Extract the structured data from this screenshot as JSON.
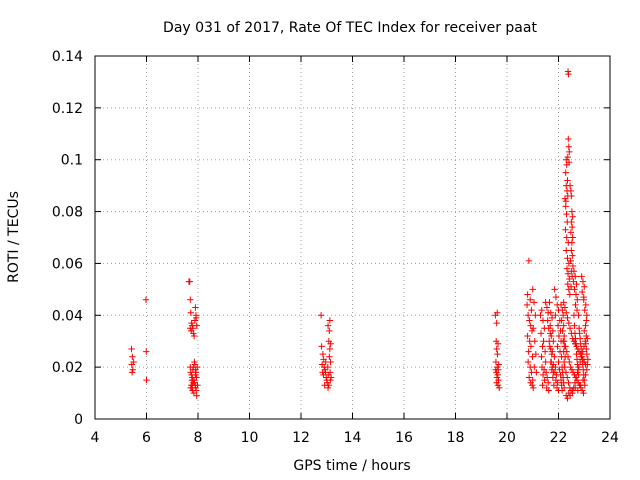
{
  "chart_data": {
    "type": "scatter",
    "title": "Day 031 of 2017, Rate Of TEC Index for receiver paat",
    "xlabel": "GPS time / hours",
    "ylabel": "ROTI / TECUs",
    "xlim": [
      4,
      24
    ],
    "ylim": [
      0,
      0.14
    ],
    "xticks": [
      4,
      6,
      8,
      10,
      12,
      14,
      16,
      18,
      20,
      22,
      24
    ],
    "yticks": [
      0,
      0.02,
      0.04,
      0.06,
      0.08,
      0.1,
      0.12,
      0.14
    ],
    "xtick_labels": [
      "4",
      "6",
      "8",
      "10",
      "12",
      "14",
      "16",
      "18",
      "20",
      "22",
      "24"
    ],
    "ytick_labels": [
      "0",
      "0.02",
      "0.04",
      "0.06",
      "0.08",
      "0.1",
      "0.12",
      "0.14"
    ],
    "grid": true,
    "marker": "plus",
    "color": "#ff0000",
    "points": [
      [
        5.42,
        0.027
      ],
      [
        5.45,
        0.024
      ],
      [
        5.43,
        0.021
      ],
      [
        5.47,
        0.019
      ],
      [
        5.44,
        0.018
      ],
      [
        5.5,
        0.022
      ],
      [
        5.98,
        0.046
      ],
      [
        5.99,
        0.026
      ],
      [
        6.0,
        0.015
      ],
      [
        7.65,
        0.053
      ],
      [
        7.68,
        0.053
      ],
      [
        7.7,
        0.046
      ],
      [
        7.72,
        0.041
      ],
      [
        7.75,
        0.037
      ],
      [
        7.78,
        0.036
      ],
      [
        7.8,
        0.035
      ],
      [
        7.74,
        0.034
      ],
      [
        7.82,
        0.033
      ],
      [
        7.85,
        0.032
      ],
      [
        7.7,
        0.035
      ],
      [
        7.9,
        0.043
      ],
      [
        7.92,
        0.04
      ],
      [
        7.88,
        0.038
      ],
      [
        7.95,
        0.036
      ],
      [
        7.93,
        0.039
      ],
      [
        7.7,
        0.02
      ],
      [
        7.72,
        0.018
      ],
      [
        7.75,
        0.017
      ],
      [
        7.78,
        0.016
      ],
      [
        7.8,
        0.015
      ],
      [
        7.82,
        0.014
      ],
      [
        7.74,
        0.013
      ],
      [
        7.76,
        0.012
      ],
      [
        7.79,
        0.011
      ],
      [
        7.84,
        0.01
      ],
      [
        7.86,
        0.022
      ],
      [
        7.88,
        0.021
      ],
      [
        7.9,
        0.019
      ],
      [
        7.92,
        0.018
      ],
      [
        7.94,
        0.016
      ],
      [
        7.85,
        0.015
      ],
      [
        7.87,
        0.014
      ],
      [
        7.89,
        0.013
      ],
      [
        7.91,
        0.012
      ],
      [
        7.93,
        0.011
      ],
      [
        7.95,
        0.009
      ],
      [
        7.82,
        0.02
      ],
      [
        7.8,
        0.019
      ],
      [
        7.78,
        0.013
      ],
      [
        7.76,
        0.015
      ],
      [
        7.72,
        0.012
      ],
      [
        7.9,
        0.017
      ],
      [
        7.97,
        0.02
      ],
      [
        7.98,
        0.013
      ],
      [
        12.78,
        0.04
      ],
      [
        12.8,
        0.028
      ],
      [
        12.85,
        0.025
      ],
      [
        12.88,
        0.023
      ],
      [
        12.82,
        0.021
      ],
      [
        12.9,
        0.02
      ],
      [
        12.93,
        0.019
      ],
      [
        12.95,
        0.018
      ],
      [
        12.87,
        0.017
      ],
      [
        12.98,
        0.016
      ],
      [
        13.0,
        0.015
      ],
      [
        13.02,
        0.014
      ],
      [
        12.92,
        0.013
      ],
      [
        13.05,
        0.012
      ],
      [
        13.08,
        0.013
      ],
      [
        12.84,
        0.018
      ],
      [
        12.96,
        0.022
      ],
      [
        13.04,
        0.02
      ],
      [
        13.05,
        0.036
      ],
      [
        13.1,
        0.034
      ],
      [
        13.12,
        0.038
      ],
      [
        13.08,
        0.03
      ],
      [
        13.12,
        0.027
      ],
      [
        13.15,
        0.029
      ],
      [
        13.1,
        0.024
      ],
      [
        13.15,
        0.022
      ],
      [
        13.13,
        0.018
      ],
      [
        13.17,
        0.016
      ],
      [
        13.06,
        0.017
      ],
      [
        13.14,
        0.015
      ],
      [
        19.55,
        0.04
      ],
      [
        19.6,
        0.037
      ],
      [
        19.62,
        0.041
      ],
      [
        19.58,
        0.03
      ],
      [
        19.65,
        0.029
      ],
      [
        19.6,
        0.027
      ],
      [
        19.63,
        0.025
      ],
      [
        19.57,
        0.022
      ],
      [
        19.62,
        0.02
      ],
      [
        19.66,
        0.019
      ],
      [
        19.59,
        0.018
      ],
      [
        19.64,
        0.017
      ],
      [
        19.61,
        0.016
      ],
      [
        19.67,
        0.015
      ],
      [
        19.6,
        0.014
      ],
      [
        19.65,
        0.013
      ],
      [
        19.7,
        0.012
      ],
      [
        19.56,
        0.019
      ],
      [
        19.68,
        0.021
      ],
      [
        20.85,
        0.061
      ],
      [
        20.8,
        0.048
      ],
      [
        20.9,
        0.046
      ],
      [
        20.78,
        0.044
      ],
      [
        20.95,
        0.042
      ],
      [
        20.82,
        0.04
      ],
      [
        20.87,
        0.038
      ],
      [
        20.92,
        0.036
      ],
      [
        20.97,
        0.034
      ],
      [
        20.8,
        0.032
      ],
      [
        20.88,
        0.03
      ],
      [
        20.93,
        0.028
      ],
      [
        20.84,
        0.026
      ],
      [
        20.99,
        0.024
      ],
      [
        20.82,
        0.022
      ],
      [
        20.9,
        0.02
      ],
      [
        20.95,
        0.018
      ],
      [
        20.86,
        0.016
      ],
      [
        21.0,
        0.015
      ],
      [
        20.92,
        0.014
      ],
      [
        20.98,
        0.013
      ],
      [
        21.02,
        0.012
      ],
      [
        21.0,
        0.05
      ],
      [
        21.05,
        0.045
      ],
      [
        21.1,
        0.04
      ],
      [
        21.02,
        0.035
      ],
      [
        21.08,
        0.03
      ],
      [
        21.12,
        0.025
      ],
      [
        21.06,
        0.02
      ],
      [
        21.14,
        0.018
      ],
      [
        21.3,
        0.04
      ],
      [
        21.35,
        0.042
      ],
      [
        21.4,
        0.038
      ],
      [
        21.45,
        0.035
      ],
      [
        21.32,
        0.033
      ],
      [
        21.42,
        0.03
      ],
      [
        21.38,
        0.028
      ],
      [
        21.48,
        0.026
      ],
      [
        21.34,
        0.024
      ],
      [
        21.5,
        0.022
      ],
      [
        21.36,
        0.02
      ],
      [
        21.44,
        0.019
      ],
      [
        21.52,
        0.018
      ],
      [
        21.4,
        0.017
      ],
      [
        21.56,
        0.016
      ],
      [
        21.46,
        0.015
      ],
      [
        21.6,
        0.014
      ],
      [
        21.38,
        0.013
      ],
      [
        21.54,
        0.012
      ],
      [
        21.62,
        0.011
      ],
      [
        21.65,
        0.045
      ],
      [
        21.7,
        0.041
      ],
      [
        21.75,
        0.039
      ],
      [
        21.68,
        0.036
      ],
      [
        21.78,
        0.034
      ],
      [
        21.72,
        0.032
      ],
      [
        21.8,
        0.03
      ],
      [
        21.66,
        0.028
      ],
      [
        21.76,
        0.026
      ],
      [
        21.84,
        0.024
      ],
      [
        21.7,
        0.022
      ],
      [
        21.8,
        0.021
      ],
      [
        21.88,
        0.02
      ],
      [
        21.74,
        0.019
      ],
      [
        21.86,
        0.018
      ],
      [
        21.92,
        0.017
      ],
      [
        21.78,
        0.016
      ],
      [
        21.9,
        0.015
      ],
      [
        21.96,
        0.014
      ],
      [
        21.82,
        0.013
      ],
      [
        21.94,
        0.012
      ],
      [
        22.0,
        0.011
      ],
      [
        21.85,
        0.05
      ],
      [
        21.9,
        0.047
      ],
      [
        21.95,
        0.044
      ],
      [
        22.0,
        0.042
      ],
      [
        21.88,
        0.04
      ],
      [
        22.05,
        0.038
      ],
      [
        21.98,
        0.036
      ],
      [
        22.08,
        0.034
      ],
      [
        22.02,
        0.032
      ],
      [
        22.1,
        0.03
      ],
      [
        21.96,
        0.028
      ],
      [
        22.06,
        0.026
      ],
      [
        22.12,
        0.024
      ],
      [
        22.0,
        0.022
      ],
      [
        22.14,
        0.02
      ],
      [
        22.04,
        0.019
      ],
      [
        22.16,
        0.018
      ],
      [
        22.08,
        0.017
      ],
      [
        22.18,
        0.016
      ],
      [
        22.1,
        0.015
      ],
      [
        22.2,
        0.014
      ],
      [
        22.12,
        0.013
      ],
      [
        22.22,
        0.012
      ],
      [
        22.14,
        0.011
      ],
      [
        22.3,
        0.1
      ],
      [
        22.32,
        0.098
      ],
      [
        22.28,
        0.095
      ],
      [
        22.35,
        0.092
      ],
      [
        22.3,
        0.09
      ],
      [
        22.33,
        0.088
      ],
      [
        22.36,
        0.086
      ],
      [
        22.29,
        0.084
      ],
      [
        22.37,
        0.134
      ],
      [
        22.39,
        0.133
      ],
      [
        22.38,
        0.108
      ],
      [
        22.4,
        0.105
      ],
      [
        22.42,
        0.103
      ],
      [
        22.36,
        0.101
      ],
      [
        22.41,
        0.099
      ],
      [
        22.25,
        0.085
      ],
      [
        22.28,
        0.082
      ],
      [
        22.31,
        0.079
      ],
      [
        22.34,
        0.076
      ],
      [
        22.27,
        0.073
      ],
      [
        22.32,
        0.07
      ],
      [
        22.38,
        0.068
      ],
      [
        22.3,
        0.065
      ],
      [
        22.35,
        0.062
      ],
      [
        22.4,
        0.06
      ],
      [
        22.33,
        0.058
      ],
      [
        22.37,
        0.056
      ],
      [
        22.42,
        0.054
      ],
      [
        22.36,
        0.052
      ],
      [
        22.4,
        0.05
      ],
      [
        22.44,
        0.048
      ],
      [
        22.45,
        0.09
      ],
      [
        22.48,
        0.088
      ],
      [
        22.5,
        0.086
      ],
      [
        22.52,
        0.08
      ],
      [
        22.55,
        0.078
      ],
      [
        22.5,
        0.076
      ],
      [
        22.53,
        0.074
      ],
      [
        22.48,
        0.072
      ],
      [
        22.55,
        0.07
      ],
      [
        22.52,
        0.068
      ],
      [
        22.5,
        0.065
      ],
      [
        22.54,
        0.063
      ],
      [
        22.47,
        0.061
      ],
      [
        22.56,
        0.059
      ],
      [
        22.5,
        0.057
      ],
      [
        22.53,
        0.055
      ],
      [
        22.58,
        0.053
      ],
      [
        22.49,
        0.051
      ],
      [
        22.6,
        0.057
      ],
      [
        22.65,
        0.055
      ],
      [
        22.7,
        0.052
      ],
      [
        22.62,
        0.05
      ],
      [
        22.68,
        0.048
      ],
      [
        22.73,
        0.046
      ],
      [
        22.66,
        0.044
      ],
      [
        22.72,
        0.042
      ],
      [
        22.78,
        0.04
      ],
      [
        22.9,
        0.055
      ],
      [
        22.95,
        0.053
      ],
      [
        23.0,
        0.051
      ],
      [
        22.92,
        0.049
      ],
      [
        22.98,
        0.047
      ],
      [
        22.2,
        0.045
      ],
      [
        22.25,
        0.043
      ],
      [
        22.3,
        0.041
      ],
      [
        22.35,
        0.039
      ],
      [
        22.4,
        0.037
      ],
      [
        22.45,
        0.035
      ],
      [
        22.5,
        0.033
      ],
      [
        22.55,
        0.031
      ],
      [
        22.6,
        0.03
      ],
      [
        22.65,
        0.029
      ],
      [
        22.7,
        0.028
      ],
      [
        22.75,
        0.027
      ],
      [
        22.8,
        0.026
      ],
      [
        22.85,
        0.025
      ],
      [
        22.9,
        0.024
      ],
      [
        22.95,
        0.023
      ],
      [
        23.0,
        0.022
      ],
      [
        23.05,
        0.021
      ],
      [
        22.22,
        0.03
      ],
      [
        22.27,
        0.028
      ],
      [
        22.32,
        0.026
      ],
      [
        22.37,
        0.024
      ],
      [
        22.42,
        0.022
      ],
      [
        22.47,
        0.02
      ],
      [
        22.52,
        0.019
      ],
      [
        22.57,
        0.018
      ],
      [
        22.62,
        0.017
      ],
      [
        22.67,
        0.016
      ],
      [
        22.72,
        0.015
      ],
      [
        22.77,
        0.014
      ],
      [
        22.82,
        0.013
      ],
      [
        22.87,
        0.012
      ],
      [
        22.92,
        0.011
      ],
      [
        22.97,
        0.01
      ],
      [
        22.24,
        0.02
      ],
      [
        22.29,
        0.018
      ],
      [
        22.34,
        0.016
      ],
      [
        22.39,
        0.014
      ],
      [
        22.44,
        0.012
      ],
      [
        22.49,
        0.011
      ],
      [
        22.54,
        0.01
      ],
      [
        22.59,
        0.012
      ],
      [
        22.64,
        0.014
      ],
      [
        22.69,
        0.016
      ],
      [
        22.74,
        0.018
      ],
      [
        22.79,
        0.02
      ],
      [
        22.84,
        0.022
      ],
      [
        22.89,
        0.024
      ],
      [
        22.94,
        0.026
      ],
      [
        22.99,
        0.028
      ],
      [
        23.04,
        0.03
      ],
      [
        23.08,
        0.032
      ],
      [
        22.3,
        0.009
      ],
      [
        22.35,
        0.008
      ],
      [
        22.4,
        0.01
      ],
      [
        22.45,
        0.009
      ],
      [
        22.55,
        0.011
      ],
      [
        22.65,
        0.012
      ],
      [
        22.75,
        0.011
      ],
      [
        22.85,
        0.013
      ],
      [
        22.95,
        0.015
      ],
      [
        23.05,
        0.017
      ],
      [
        23.1,
        0.019
      ],
      [
        23.12,
        0.021
      ],
      [
        23.14,
        0.023
      ],
      [
        23.1,
        0.025
      ],
      [
        23.08,
        0.027
      ],
      [
        23.06,
        0.029
      ],
      [
        23.12,
        0.031
      ],
      [
        23.0,
        0.034
      ],
      [
        23.05,
        0.036
      ],
      [
        23.08,
        0.038
      ],
      [
        23.1,
        0.04
      ],
      [
        23.02,
        0.042
      ],
      [
        23.06,
        0.044
      ],
      [
        22.98,
        0.046
      ],
      [
        21.5,
        0.045
      ],
      [
        21.55,
        0.043
      ],
      [
        21.6,
        0.041
      ],
      [
        21.58,
        0.038
      ],
      [
        21.62,
        0.035
      ],
      [
        21.68,
        0.033
      ],
      [
        21.64,
        0.03
      ],
      [
        21.7,
        0.027
      ],
      [
        21.74,
        0.025
      ],
      [
        21.72,
        0.022
      ],
      [
        21.76,
        0.02
      ],
      [
        21.8,
        0.018
      ],
      [
        22.1,
        0.044
      ],
      [
        22.15,
        0.042
      ],
      [
        22.18,
        0.04
      ],
      [
        22.12,
        0.038
      ],
      [
        22.2,
        0.036
      ],
      [
        22.16,
        0.034
      ],
      [
        22.22,
        0.032
      ],
      [
        22.18,
        0.03
      ],
      [
        22.24,
        0.028
      ],
      [
        22.2,
        0.026
      ],
      [
        22.26,
        0.024
      ],
      [
        22.22,
        0.022
      ],
      [
        22.6,
        0.04
      ],
      [
        22.62,
        0.036
      ],
      [
        22.64,
        0.033
      ],
      [
        22.66,
        0.031
      ],
      [
        22.68,
        0.029
      ],
      [
        22.7,
        0.025
      ],
      [
        22.72,
        0.023
      ],
      [
        22.74,
        0.021
      ],
      [
        22.76,
        0.019
      ],
      [
        22.78,
        0.017
      ],
      [
        22.8,
        0.035
      ],
      [
        22.82,
        0.033
      ],
      [
        22.84,
        0.031
      ],
      [
        22.86,
        0.029
      ],
      [
        22.88,
        0.027
      ],
      [
        22.9,
        0.025
      ],
      [
        22.92,
        0.023
      ],
      [
        22.94,
        0.021
      ],
      [
        22.96,
        0.019
      ],
      [
        22.98,
        0.017
      ],
      [
        23.0,
        0.015
      ],
      [
        23.02,
        0.013
      ]
    ]
  }
}
